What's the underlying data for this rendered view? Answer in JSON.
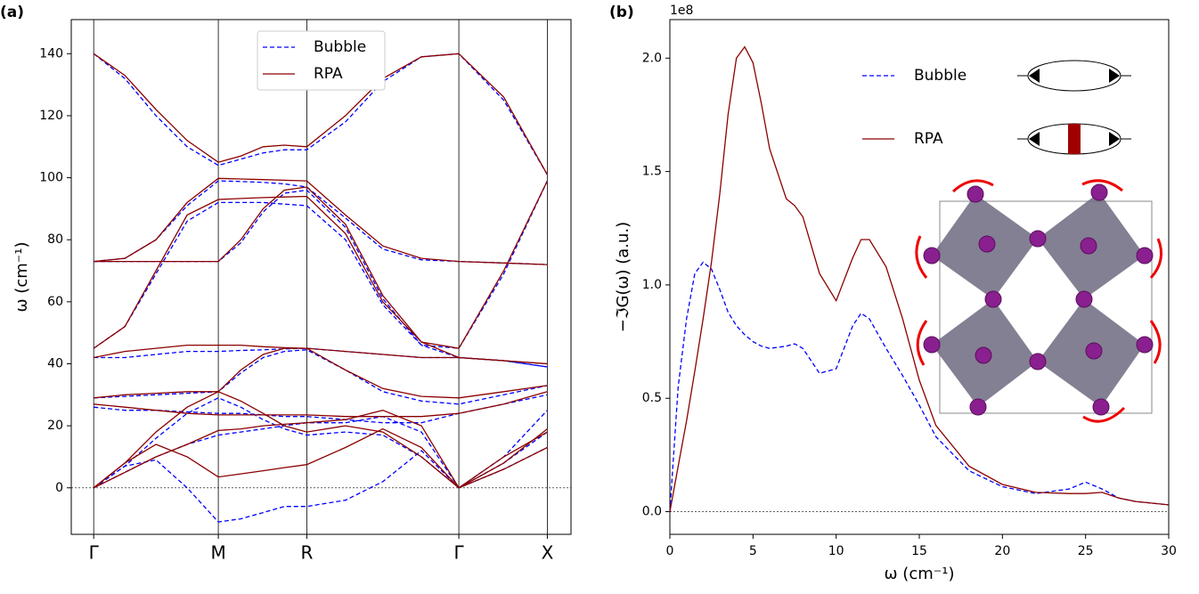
{
  "chart_data": [
    {
      "type": "line",
      "panel_label": "(a)",
      "ylabel": "ω (cm⁻¹)",
      "x": [
        0,
        0.25,
        0.5,
        0.75,
        1,
        1.18,
        1.36,
        1.53,
        1.71,
        2.02,
        2.32,
        2.63,
        2.93,
        3.29,
        3.64
      ],
      "xlim": [
        -0.18,
        3.83
      ],
      "ylim": [
        -15,
        151
      ],
      "xticks": [
        {
          "value": 0,
          "label": "Γ"
        },
        {
          "value": 1,
          "label": "M"
        },
        {
          "value": 1.71,
          "label": "R"
        },
        {
          "value": 2.93,
          "label": "Γ"
        },
        {
          "value": 3.64,
          "label": "X"
        }
      ],
      "yticks": [
        0,
        20,
        40,
        60,
        80,
        100,
        120,
        140
      ],
      "legend": "upper center",
      "series": [
        {
          "name": "Bubble",
          "color": "#0000ff",
          "style": "dashed",
          "bands": [
            [
              140,
              132,
              120,
              110,
              104,
              106,
              108,
              109,
              109,
              118,
              131,
              139,
              140,
              125,
              101
            ],
            [
              73,
              74,
              80,
              91,
              99,
              98.8,
              98.5,
              98,
              97,
              87,
              77,
              73.5,
              73,
              72.5,
              72
            ],
            [
              45,
              52,
              69,
              86,
              92,
              92,
              92,
              91.5,
              91,
              80,
              59,
              46,
              45,
              69,
              99
            ],
            [
              73,
              73,
              73,
              73,
              73,
              79,
              89,
              95,
              96,
              84,
              61,
              46,
              42,
              41,
              39
            ],
            [
              42,
              42,
              43,
              44,
              44,
              44.3,
              44.5,
              44.8,
              45,
              44,
              43,
              42,
              42,
              41,
              39
            ],
            [
              29,
              29.5,
              30,
              30.5,
              31,
              37,
              42,
              44,
              44.5,
              38,
              31,
              28,
              27,
              30,
              33
            ],
            [
              26,
              25,
              25,
              24.5,
              24,
              24,
              23.5,
              23,
              23,
              22,
              21,
              21,
              24,
              27,
              30
            ],
            [
              0,
              7,
              16,
              24,
              29,
              26,
              22,
              19,
              17,
              18,
              17,
              10,
              0,
              8,
              18
            ],
            [
              0,
              5,
              10,
              14,
              17,
              18,
              19,
              20,
              21,
              21,
              23,
              18,
              0,
              10,
              25
            ],
            [
              0,
              7,
              9,
              0,
              -11,
              -10,
              -8,
              -6,
              -6,
              -4,
              2,
              12,
              0,
              6,
              13
            ]
          ]
        },
        {
          "name": "RPA",
          "color": "#8b0000",
          "style": "solid",
          "bands": [
            [
              140,
              133,
              122,
              112,
              105,
              107,
              110,
              110.5,
              110,
              120,
              132,
              139,
              140,
              126,
              101
            ],
            [
              73,
              74,
              80,
              92,
              99.8,
              99.6,
              99.4,
              99.2,
              99,
              88,
              78,
              74,
              73,
              72.5,
              72
            ],
            [
              45,
              52,
              70,
              88,
              93,
              93.3,
              93.6,
              93.8,
              94,
              82,
              60,
              47,
              45,
              70,
              99
            ],
            [
              73,
              73,
              73,
              73,
              73,
              80,
              90,
              96,
              97,
              85,
              62,
              47,
              42,
              41,
              40
            ],
            [
              42,
              44,
              45,
              46,
              46,
              46,
              45.5,
              45.2,
              45,
              44,
              43,
              42,
              42,
              41,
              40
            ],
            [
              29,
              30,
              30.5,
              31,
              31,
              38,
              43,
              45,
              45,
              38,
              32,
              29.5,
              29,
              31,
              33
            ],
            [
              27,
              26,
              25,
              24,
              23.5,
              23.5,
              23.5,
              23.5,
              23.5,
              23,
              23,
              23,
              24,
              27,
              31
            ],
            [
              0,
              8,
              18,
              26,
              31,
              28,
              24,
              20,
              18,
              20,
              18,
              10,
              0,
              8,
              19
            ],
            [
              0,
              5,
              10,
              14,
              18.5,
              19,
              20,
              20.5,
              21,
              22,
              25,
              20,
              0,
              10,
              18
            ],
            [
              0,
              8,
              14,
              10,
              3.5,
              4.5,
              5.5,
              6.5,
              7.5,
              13,
              19,
              13,
              0,
              6,
              13
            ]
          ]
        }
      ]
    },
    {
      "type": "line",
      "panel_label": "(b)",
      "offset_label": "1e8",
      "ylabel": "−ℑG(ω) (a.u.)",
      "xlabel": "ω (cm⁻¹)",
      "x": [
        0,
        0.5,
        1,
        1.5,
        2,
        2.5,
        3,
        3.5,
        4,
        4.5,
        5,
        5.5,
        6,
        7,
        7.5,
        8,
        9,
        10,
        11,
        11.5,
        12,
        13,
        14,
        15,
        16,
        18,
        20,
        22,
        24,
        25,
        26,
        27,
        28,
        30
      ],
      "xlim": [
        0,
        30
      ],
      "ylim": [
        -0.1,
        2.17
      ],
      "xticks": [
        0,
        5,
        10,
        15,
        20,
        25,
        30
      ],
      "yticks": [
        {
          "value": 0,
          "label": "0.0"
        },
        0.5,
        {
          "value": 1,
          "label": "1.0"
        },
        1.5,
        {
          "value": 2,
          "label": "2.0"
        }
      ],
      "legend": "upper right",
      "series": [
        {
          "name": "Bubble",
          "color": "#0000ff",
          "style": "dashed",
          "values": [
            0,
            0.55,
            0.85,
            1.05,
            1.1,
            1.07,
            0.98,
            0.88,
            0.82,
            0.78,
            0.75,
            0.73,
            0.72,
            0.73,
            0.74,
            0.72,
            0.61,
            0.63,
            0.82,
            0.875,
            0.85,
            0.72,
            0.6,
            0.47,
            0.33,
            0.18,
            0.11,
            0.08,
            0.1,
            0.13,
            0.1,
            0.06,
            0.045,
            0.03
          ]
        },
        {
          "name": "RPA",
          "color": "#8b0000",
          "style": "solid",
          "values": [
            0,
            0.2,
            0.4,
            0.62,
            0.85,
            1.1,
            1.4,
            1.75,
            2.0,
            2.05,
            1.98,
            1.8,
            1.6,
            1.38,
            1.35,
            1.3,
            1.05,
            0.93,
            1.12,
            1.2,
            1.2,
            1.08,
            0.85,
            0.58,
            0.38,
            0.2,
            0.12,
            0.085,
            0.08,
            0.08,
            0.085,
            0.06,
            0.045,
            0.03
          ]
        }
      ]
    }
  ]
}
